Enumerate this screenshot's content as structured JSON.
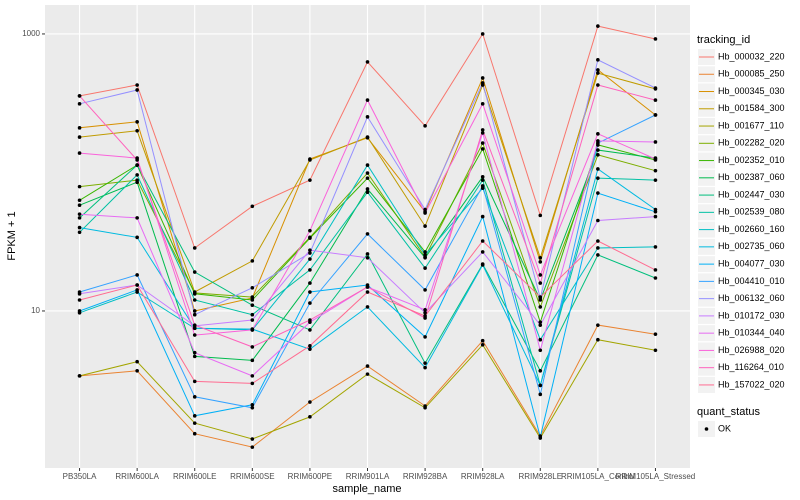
{
  "chart_data": {
    "type": "line",
    "x_label": "sample_name",
    "y_label": "FPKM + 1",
    "log_y": true,
    "grid": true,
    "legend_position": "right",
    "legend_title": "tracking_id",
    "point_legend": {
      "title": "quant_status",
      "levels": [
        "OK"
      ],
      "color": "#000000"
    },
    "ylim": [
      0.735,
      1618
    ],
    "yticks": [
      10,
      1000
    ],
    "categories": [
      "PB350LA",
      "RRIM600LA",
      "RRIM600LE",
      "RRIM600SE",
      "RRIM600PE",
      "RRIM901LA",
      "RRIM928BA",
      "RRIM928LA",
      "RRIM928LE",
      "RRIM105LA_Control",
      "RRIM105LA_Stressed"
    ],
    "series": [
      {
        "name": "Hb_000032_220",
        "color": "#F8766D",
        "values": [
          357,
          428,
          28.5,
          57,
          88,
          628,
          217,
          1000,
          49,
          1140,
          920
        ]
      },
      {
        "name": "Hb_000085_250",
        "color": "#EA8331",
        "values": [
          3.4,
          3.7,
          1.3,
          1.04,
          2.2,
          4.0,
          2.06,
          6.1,
          1.25,
          7.9,
          6.8
        ]
      },
      {
        "name": "Hb_000345_030",
        "color": "#D89000",
        "values": [
          210,
          232,
          10,
          12.4,
          125,
          178,
          52,
          481,
          22.6,
          550,
          260
        ]
      },
      {
        "name": "Hb_001584_300",
        "color": "#C09B00",
        "values": [
          180,
          200,
          13.7,
          23,
          123,
          180,
          41,
          428,
          24.2,
          522,
          401
        ]
      },
      {
        "name": "Hb_001677_110",
        "color": "#A3A500",
        "values": [
          3.4,
          4.3,
          1.55,
          1.19,
          1.72,
          3.5,
          2.0,
          5.7,
          1.21,
          6.2,
          5.2
        ]
      },
      {
        "name": "Hb_002282_020",
        "color": "#7CAE00",
        "values": [
          79,
          88,
          13.5,
          12.6,
          34,
          99,
          24.5,
          163,
          10.7,
          134,
          103
        ]
      },
      {
        "name": "Hb_002352_010",
        "color": "#39B600",
        "values": [
          63,
          113,
          13.3,
          12,
          33.6,
          91,
          26.7,
          148,
          8.3,
          158,
          123
        ]
      },
      {
        "name": "Hb_002387_060",
        "color": "#00BB4E",
        "values": [
          58,
          85,
          4.7,
          4.4,
          15.9,
          76,
          24.2,
          93,
          12,
          145,
          127
        ]
      },
      {
        "name": "Hb_002447_030",
        "color": "#00BF7D",
        "values": [
          47,
          113,
          19.1,
          11,
          7.3,
          25.8,
          4.2,
          21.8,
          3.7,
          25.4,
          17.3
        ]
      },
      {
        "name": "Hb_002539_080",
        "color": "#00C1A3",
        "values": [
          37,
          96,
          12,
          9.4,
          19.8,
          72,
          20.4,
          88,
          2.9,
          91,
          88
        ]
      },
      {
        "name": "Hb_002660_160",
        "color": "#00BFC4",
        "values": [
          9.7,
          13.7,
          7.5,
          7.3,
          23.7,
          113,
          25.4,
          77,
          6.2,
          28.5,
          29
        ]
      },
      {
        "name": "Hb_002735_060",
        "color": "#00BAE0",
        "values": [
          40,
          34,
          7.5,
          7.4,
          5.3,
          10.7,
          3.9,
          21.5,
          2.9,
          106,
          54
        ]
      },
      {
        "name": "Hb_004077_030",
        "color": "#00B0F6",
        "values": [
          10,
          14.2,
          1.75,
          2.1,
          13.7,
          15.4,
          6.5,
          48,
          1.23,
          71,
          52
        ]
      },
      {
        "name": "Hb_004410_010",
        "color": "#35A2FF",
        "values": [
          13.7,
          18.2,
          2.4,
          2.0,
          11.4,
          36,
          14.2,
          80,
          2.5,
          163,
          260
        ]
      },
      {
        "name": "Hb_006132_060",
        "color": "#9590FF",
        "values": [
          313,
          394,
          9.4,
          14.7,
          26.2,
          252,
          54,
          443,
          12.4,
          650,
          407
        ]
      },
      {
        "name": "Hb_010172_030",
        "color": "#C77CFF",
        "values": [
          13.3,
          15.4,
          7.8,
          8.6,
          27.5,
          24.2,
          9.7,
          26.7,
          7.9,
          45,
          48
        ]
      },
      {
        "name": "Hb_010344_040",
        "color": "#E76BF3",
        "values": [
          50,
          47,
          5.0,
          3.4,
          8.3,
          14.9,
          10.2,
          193,
          5.2,
          169,
          166
        ]
      },
      {
        "name": "Hb_026988_020",
        "color": "#FA62DB",
        "values": [
          138,
          127,
          6.7,
          7.3,
          38,
          333,
          51,
          313,
          18.2,
          190,
          125
        ]
      },
      {
        "name": "Hb_116264_010",
        "color": "#FF62BC",
        "values": [
          357,
          123,
          7.9,
          5.5,
          8.6,
          14.9,
          8.9,
          203,
          15.9,
          428,
          333
        ]
      },
      {
        "name": "Hb_157022_020",
        "color": "#FF6C91",
        "values": [
          12,
          15.4,
          3.1,
          3.0,
          5.6,
          13.7,
          9.2,
          32,
          12.6,
          32,
          19.8
        ]
      }
    ]
  }
}
